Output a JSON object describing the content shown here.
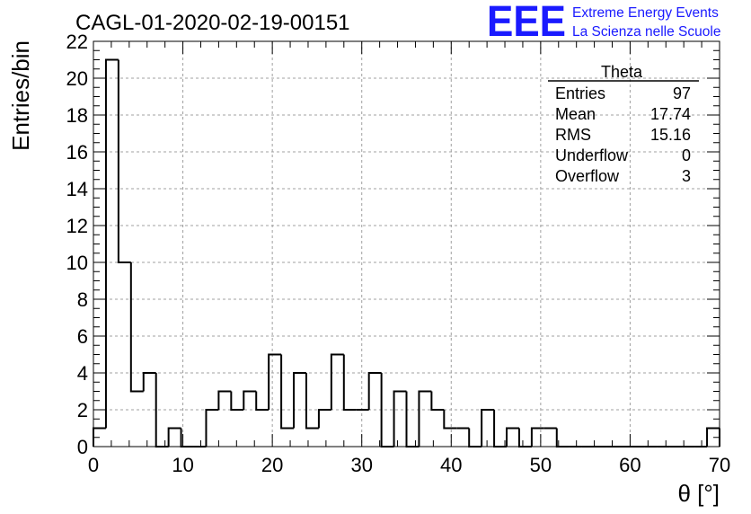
{
  "title": "CAGL-01-2020-02-19-00151",
  "logo": {
    "mark": "EEE",
    "line1": "Extreme Energy Events",
    "line2": "La Scienza nelle Scuole",
    "color": "#1a1aff"
  },
  "stats": {
    "header": "Theta",
    "rows": [
      {
        "label": "Entries",
        "value": "97"
      },
      {
        "label": "Mean",
        "value": "17.74"
      },
      {
        "label": "RMS",
        "value": "15.16"
      },
      {
        "label": "Underflow",
        "value": "0"
      },
      {
        "label": "Overflow",
        "value": "3"
      }
    ]
  },
  "chart_data": {
    "type": "histogram",
    "title": "CAGL-01-2020-02-19-00151",
    "xlabel": "θ [°]",
    "ylabel": "Entries/bin",
    "xlim": [
      0,
      70
    ],
    "ylim": [
      0,
      22
    ],
    "bin_width": 1.4,
    "bin_edges_start": 0,
    "counts": [
      1,
      21,
      10,
      3,
      4,
      0,
      1,
      0,
      0,
      2,
      3,
      2,
      3,
      2,
      5,
      1,
      4,
      1,
      2,
      5,
      2,
      2,
      4,
      0,
      3,
      0,
      3,
      2,
      1,
      1,
      0,
      2,
      0,
      1,
      0,
      1,
      1,
      0,
      0,
      0,
      0,
      0,
      0,
      0,
      0,
      0,
      0,
      0,
      0,
      1
    ],
    "x_ticks": [
      0,
      10,
      20,
      30,
      40,
      50,
      60,
      70
    ],
    "y_ticks": [
      0,
      2,
      4,
      6,
      8,
      10,
      12,
      14,
      16,
      18,
      20,
      22
    ],
    "grid": true,
    "line_color": "#000000",
    "grid_color": "#a0a0a0"
  }
}
